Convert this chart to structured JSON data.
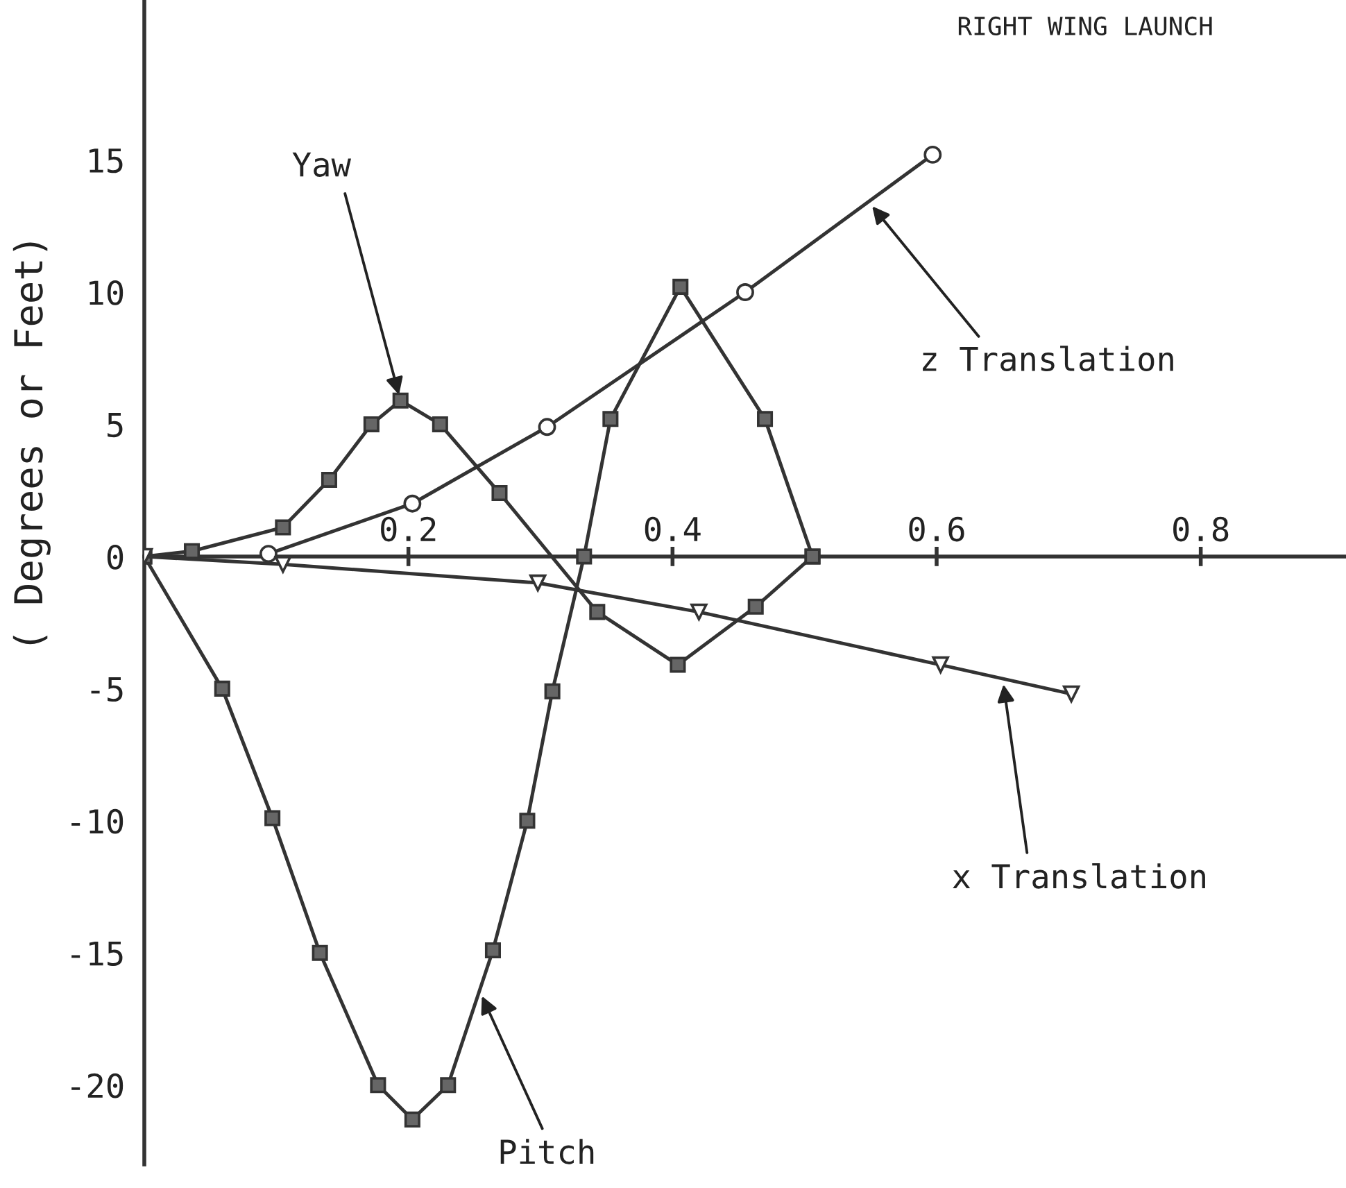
{
  "chart_data": {
    "type": "line",
    "title": "RIGHT WING LAUNCH",
    "ylabel": "( Degrees or Feet)",
    "xlim": [
      0,
      0.91
    ],
    "ylim": [
      -23,
      21
    ],
    "xticks": [
      0.2,
      0.4,
      0.6,
      0.8
    ],
    "yticks": [
      -20,
      -15,
      -10,
      -5,
      0,
      5,
      10,
      15
    ],
    "line_style": "solid",
    "series": [
      {
        "name": "Pitch",
        "color": "#333333",
        "marker": "square",
        "x": [
          0,
          0.059,
          0.097,
          0.133,
          0.177,
          0.203,
          0.23,
          0.264,
          0.29,
          0.309,
          0.333,
          0.353,
          0.406,
          0.47,
          0.506
        ],
        "values": [
          0,
          -5,
          -9.9,
          -15,
          -20,
          -21.3,
          -20,
          -14.9,
          -10,
          -5.1,
          0,
          5.2,
          10.2,
          5.2,
          0
        ]
      },
      {
        "name": "Yaw",
        "color": "#333333",
        "marker": "square",
        "x": [
          0,
          0.036,
          0.105,
          0.14,
          0.172,
          0.194,
          0.224,
          0.269,
          0.343,
          0.404,
          0.463,
          0.506
        ],
        "values": [
          0,
          0.2,
          1.1,
          2.9,
          5,
          5.9,
          5,
          2.4,
          -2.1,
          -4.1,
          -1.9,
          0
        ]
      },
      {
        "name": "z Translation",
        "color": "#333333",
        "marker": "circle",
        "x": [
          0.094,
          0.203,
          0.305,
          0.455,
          0.597
        ],
        "values": [
          0.1,
          2,
          4.9,
          10,
          15.2
        ]
      },
      {
        "name": "x Translation",
        "color": "#333333",
        "marker": "triangle",
        "x": [
          0,
          0.105,
          0.298,
          0.42,
          0.603,
          0.702
        ],
        "values": [
          0,
          -0.3,
          -1,
          -2.1,
          -4.1,
          -5.2
        ]
      }
    ]
  }
}
